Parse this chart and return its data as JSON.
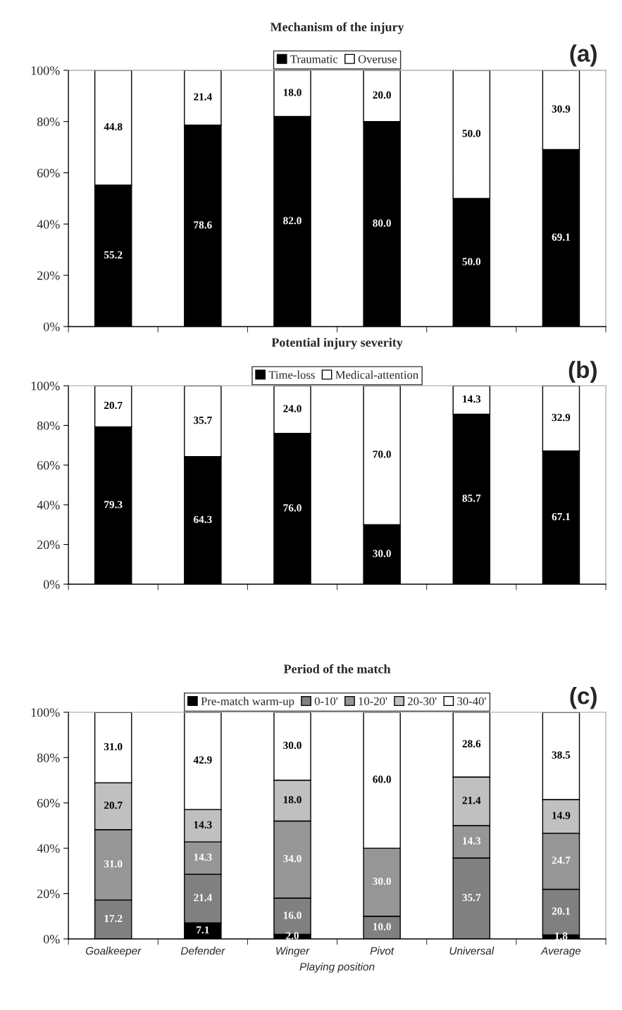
{
  "chart_data": [
    {
      "type": "bar",
      "title": "Mechanism of the injury",
      "stacked": true,
      "legend": "top",
      "tick_labels": "y",
      "annotations": [
        "(a)"
      ],
      "categories": [
        null,
        null,
        null,
        null,
        null,
        null
      ],
      "ylim": [
        0,
        100
      ],
      "yticks": [
        {
          "value": 0,
          "label": "0%"
        },
        {
          "value": 20,
          "label": "20%"
        },
        {
          "value": 40,
          "label": "40%"
        },
        {
          "value": 60,
          "label": "60%"
        },
        {
          "value": 80,
          "label": "80%"
        },
        {
          "value": 100,
          "label": "100%"
        }
      ],
      "series": [
        {
          "name": "Traumatic",
          "color": "#000000",
          "values": [
            55.2,
            78.6,
            82.0,
            80.0,
            50.0,
            69.1
          ],
          "value_labels": [
            "55.2",
            "78.6",
            "82.0",
            "80.0",
            "50.0",
            "69.1"
          ]
        },
        {
          "name": "Overuse",
          "color": "#ffffff",
          "values": [
            44.8,
            21.4,
            18.0,
            20.0,
            50.0,
            30.9
          ],
          "value_labels": [
            "44.8",
            "21.4",
            "18.0",
            "20.0",
            "50.0",
            "30.9"
          ]
        }
      ]
    },
    {
      "type": "bar",
      "title": "Potential injury severity",
      "stacked": true,
      "legend": "top",
      "tick_labels": "y",
      "annotations": [
        "(b)"
      ],
      "categories": [
        null,
        null,
        null,
        null,
        null,
        null
      ],
      "ylim": [
        0,
        100
      ],
      "yticks": [
        {
          "value": 0,
          "label": "0%"
        },
        {
          "value": 20,
          "label": "20%"
        },
        {
          "value": 40,
          "label": "40%"
        },
        {
          "value": 60,
          "label": "60%"
        },
        {
          "value": 80,
          "label": "80%"
        },
        {
          "value": 100,
          "label": "100%"
        }
      ],
      "series": [
        {
          "name": "Time-loss",
          "color": "#000000",
          "values": [
            79.3,
            64.3,
            76.0,
            30.0,
            85.7,
            67.1
          ],
          "value_labels": [
            "79.3",
            "64.3",
            "76.0",
            "30.0",
            "85.7",
            "67.1"
          ]
        },
        {
          "name": "Medical-attention",
          "color": "#ffffff",
          "values": [
            20.7,
            35.7,
            24.0,
            70.0,
            14.3,
            32.9
          ],
          "value_labels": [
            "20.7",
            "35.7",
            "24.0",
            "70.0",
            "14.3",
            "32.9"
          ]
        }
      ]
    },
    {
      "type": "bar",
      "title": "Period of the match",
      "xlabel": "Playing position",
      "stacked": true,
      "legend": "top",
      "annotations": [
        "(c)"
      ],
      "categories": [
        "Goalkeeper",
        "Defender",
        "Winger",
        "Pivot",
        "Universal",
        "Average"
      ],
      "ylim": [
        0,
        100
      ],
      "yticks": [
        {
          "value": 0,
          "label": "0%"
        },
        {
          "value": 20,
          "label": "20%"
        },
        {
          "value": 40,
          "label": "40%"
        },
        {
          "value": 60,
          "label": "60%"
        },
        {
          "value": 80,
          "label": "80%"
        },
        {
          "value": 100,
          "label": "100%"
        }
      ],
      "series": [
        {
          "name": "Pre-match warm-up",
          "color": "#000000",
          "values": [
            0,
            7.1,
            2.0,
            0,
            0,
            1.8
          ],
          "value_labels": [
            null,
            "7.1",
            "2.0",
            null,
            null,
            "1.8"
          ]
        },
        {
          "name": "0-10'",
          "color": "#808080",
          "values": [
            17.2,
            21.4,
            16.0,
            10.0,
            35.7,
            20.1
          ],
          "value_labels": [
            "17.2",
            "21.4",
            "16.0",
            "10.0",
            "35.7",
            "20.1"
          ]
        },
        {
          "name": "10-20'",
          "color": "#969696",
          "values": [
            31.0,
            14.3,
            34.0,
            30.0,
            14.3,
            24.7
          ],
          "value_labels": [
            "31.0",
            "14.3",
            "34.0",
            "30.0",
            "14.3",
            "24.7"
          ]
        },
        {
          "name": "20-30'",
          "color": "#c0c0c0",
          "values": [
            20.7,
            14.3,
            18.0,
            0,
            21.4,
            14.9
          ],
          "value_labels": [
            "20.7",
            "14.3",
            "18.0",
            null,
            "21.4",
            "14.9"
          ]
        },
        {
          "name": "30-40'",
          "color": "#ffffff",
          "values": [
            31.0,
            42.9,
            30.0,
            60.0,
            28.6,
            38.5
          ],
          "value_labels": [
            "31.0",
            "42.9",
            "30.0",
            "60.0",
            "28.6",
            "38.5"
          ]
        }
      ]
    }
  ]
}
